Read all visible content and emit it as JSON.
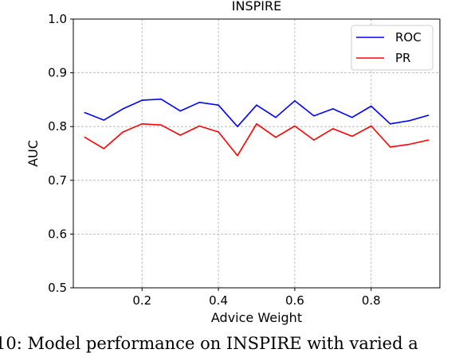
{
  "chart_data": {
    "type": "line",
    "title": "INSPIRE",
    "xlabel": "Advice Weight",
    "ylabel": "AUC",
    "xlim": [
      0.02,
      0.98
    ],
    "ylim": [
      0.5,
      1.0
    ],
    "xticks": [
      "0.2",
      "0.4",
      "0.6",
      "0.8"
    ],
    "yticks": [
      "0.5",
      "0.6",
      "0.7",
      "0.8",
      "0.9",
      "1.0"
    ],
    "grid": true,
    "legend_position": "top-right",
    "x": [
      0.05,
      0.1,
      0.15,
      0.2,
      0.25,
      0.3,
      0.35,
      0.4,
      0.45,
      0.5,
      0.55,
      0.6,
      0.65,
      0.7,
      0.75,
      0.8,
      0.85,
      0.9,
      0.95
    ],
    "series": [
      {
        "name": "ROC",
        "color": "#0000ff",
        "values": [
          0.826,
          0.812,
          0.833,
          0.849,
          0.851,
          0.829,
          0.845,
          0.84,
          0.8,
          0.84,
          0.817,
          0.848,
          0.82,
          0.833,
          0.817,
          0.838,
          0.805,
          0.811,
          0.821
        ]
      },
      {
        "name": "PR",
        "color": "#ff0000",
        "values": [
          0.78,
          0.759,
          0.79,
          0.805,
          0.803,
          0.784,
          0.801,
          0.79,
          0.746,
          0.805,
          0.78,
          0.801,
          0.775,
          0.796,
          0.782,
          0.801,
          0.762,
          0.767,
          0.775
        ]
      }
    ]
  },
  "caption": "10: Model performance on INSPIRE with varied a"
}
